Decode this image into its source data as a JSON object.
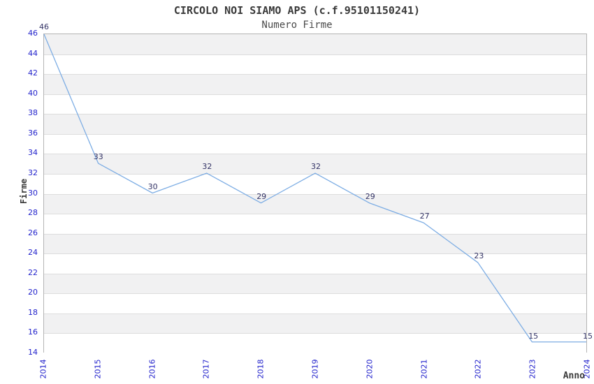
{
  "colors": {
    "line": "#7dade4",
    "tick_label": "#2323cc",
    "point_label": "#333366",
    "band_gray": "#f1f1f2",
    "band_white": "#ffffff",
    "gridline": "#dddddd",
    "spine": "#b4b4b4",
    "title": "#3a3a3a",
    "subtitle": "#4a4a4a"
  },
  "chart_data": {
    "type": "line",
    "title": "CIRCOLO NOI SIAMO APS (c.f.95101150241)",
    "subtitle": "Numero Firme",
    "xlabel": "Anno",
    "ylabel": "Firme",
    "x": [
      "2014",
      "2015",
      "2016",
      "2017",
      "2018",
      "2019",
      "2020",
      "2021",
      "2022",
      "2023",
      "2024"
    ],
    "values": [
      46,
      33,
      30,
      32,
      29,
      32,
      29,
      27,
      23,
      15,
      15
    ],
    "point_labels": [
      "46",
      "33",
      "30",
      "32",
      "29",
      "32",
      "29",
      "27",
      "23",
      "15",
      "15"
    ],
    "ylim": [
      14,
      46
    ],
    "ytick_step": 2,
    "yticks": [
      14,
      16,
      18,
      20,
      22,
      24,
      26,
      28,
      30,
      32,
      34,
      36,
      38,
      40,
      42,
      44,
      46
    ],
    "grid": "horizontal-alternating-bands",
    "legend": "none",
    "marker": "none"
  }
}
